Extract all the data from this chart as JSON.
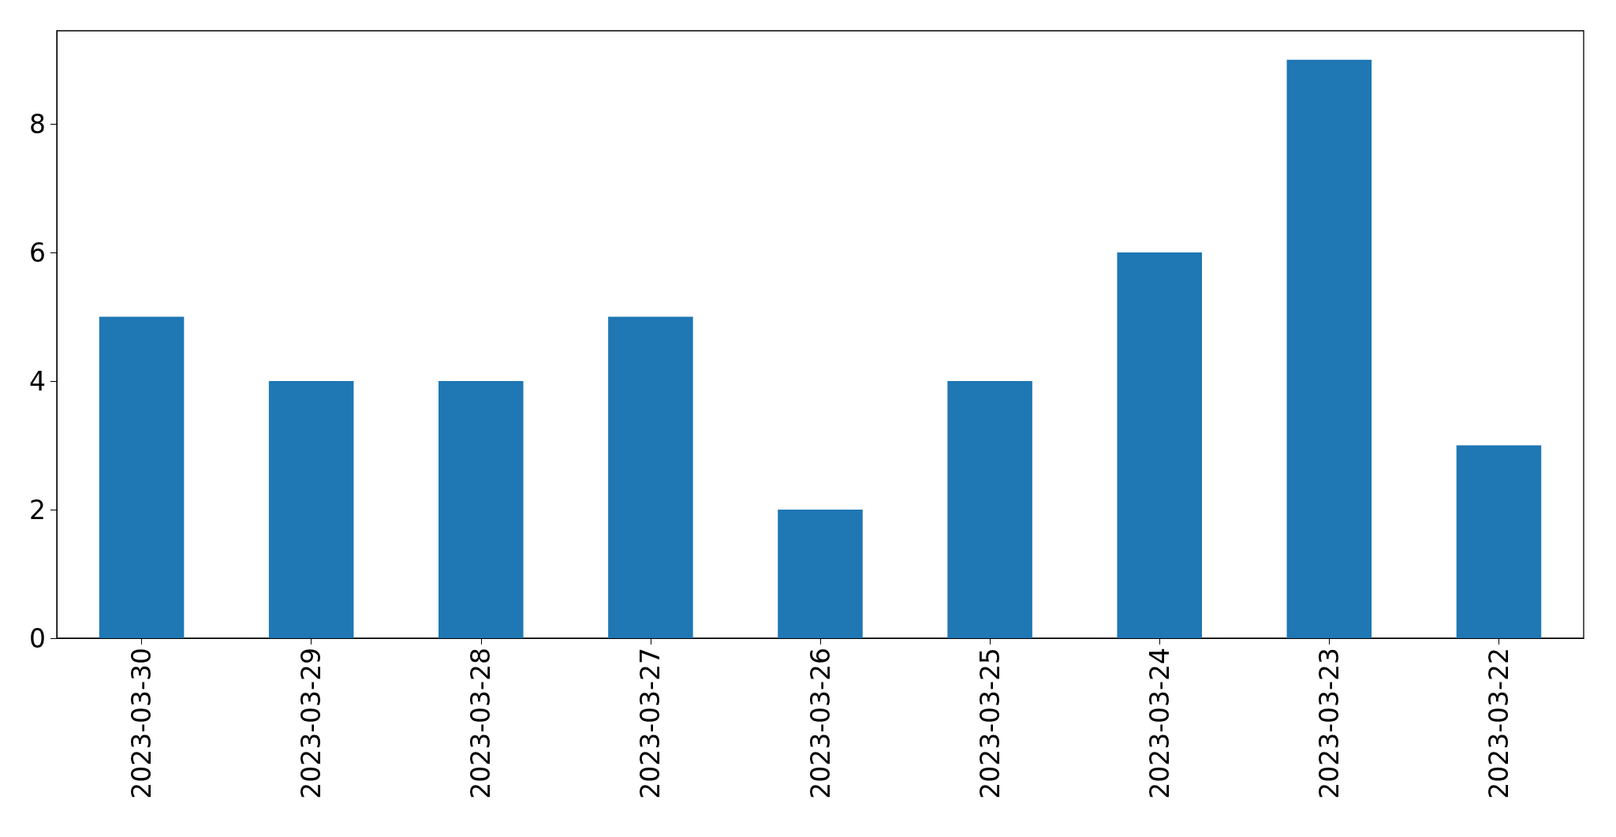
{
  "chart_data": {
    "type": "bar",
    "categories": [
      "2023-03-30",
      "2023-03-29",
      "2023-03-28",
      "2023-03-27",
      "2023-03-26",
      "2023-03-25",
      "2023-03-24",
      "2023-03-23",
      "2023-03-22"
    ],
    "values": [
      5,
      4,
      4,
      5,
      2,
      4,
      6,
      9,
      3
    ],
    "color": "#1f77b4",
    "ylim": [
      0,
      9.45
    ],
    "yticks": [
      0,
      2,
      4,
      6,
      8
    ],
    "grid": false
  }
}
